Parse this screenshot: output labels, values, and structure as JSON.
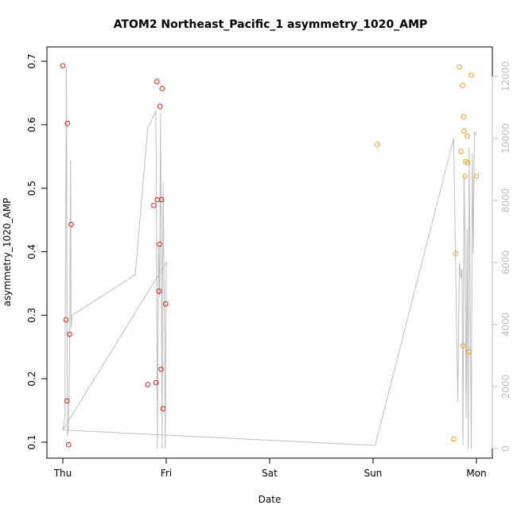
{
  "chart_data": {
    "type": "scatter",
    "title": "ATOM2 Northeast_Pacific_1 asymmetry_1020_AMP",
    "xlabel": "Date",
    "ylabel": "asymmetry_1020_AMP",
    "x_ticks": [
      "Thu",
      "Fri",
      "Sat",
      "Sun",
      "Mon"
    ],
    "xlim": [
      0,
      4.05
    ],
    "ylim": [
      0.09,
      0.72
    ],
    "y_ticks": [
      0.1,
      0.2,
      0.3,
      0.4,
      0.5,
      0.6,
      0.7
    ],
    "y2_ticks": [
      0,
      2000,
      4000,
      6000,
      8000,
      10000,
      12000
    ],
    "y2lim": [
      -300,
      12800
    ],
    "grid": false,
    "series": [
      {
        "color": "#e41a1c",
        "points": [
          {
            "x": 0.0,
            "y": 0.693
          },
          {
            "x": 0.03,
            "y": 0.293
          },
          {
            "x": 0.04,
            "y": 0.165
          },
          {
            "x": 0.045,
            "y": 0.602
          },
          {
            "x": 0.055,
            "y": 0.096
          },
          {
            "x": 0.065,
            "y": 0.27
          },
          {
            "x": 0.08,
            "y": 0.443
          },
          {
            "x": 0.82,
            "y": 0.191
          },
          {
            "x": 0.88,
            "y": 0.473
          },
          {
            "x": 0.9,
            "y": 0.194
          },
          {
            "x": 0.91,
            "y": 0.668
          },
          {
            "x": 0.912,
            "y": 0.482
          },
          {
            "x": 0.93,
            "y": 0.338
          },
          {
            "x": 0.935,
            "y": 0.412
          },
          {
            "x": 0.94,
            "y": 0.629
          },
          {
            "x": 0.95,
            "y": 0.215
          },
          {
            "x": 0.955,
            "y": 0.482
          },
          {
            "x": 0.96,
            "y": 0.657
          },
          {
            "x": 0.97,
            "y": 0.153
          },
          {
            "x": 0.995,
            "y": 0.318
          }
        ]
      },
      {
        "color": "#ff9e1b",
        "points": [
          {
            "x": 3.04,
            "y": 0.569
          },
          {
            "x": 3.78,
            "y": 0.105
          },
          {
            "x": 3.8,
            "y": 0.397
          },
          {
            "x": 3.835,
            "y": 0.691
          },
          {
            "x": 3.85,
            "y": 0.558
          },
          {
            "x": 3.865,
            "y": 0.662
          },
          {
            "x": 3.87,
            "y": 0.252
          },
          {
            "x": 3.875,
            "y": 0.613
          },
          {
            "x": 3.88,
            "y": 0.59
          },
          {
            "x": 3.89,
            "y": 0.519
          },
          {
            "x": 3.895,
            "y": 0.542
          },
          {
            "x": 3.91,
            "y": 0.582
          },
          {
            "x": 3.915,
            "y": 0.54
          },
          {
            "x": 3.925,
            "y": 0.243
          },
          {
            "x": 3.95,
            "y": 0.678
          },
          {
            "x": 4.0,
            "y": 0.519
          }
        ]
      }
    ],
    "line": {
      "color": "#bdbdbd",
      "axis": "right",
      "x": [
        0.0,
        0.02,
        0.035,
        0.045,
        0.055,
        0.065,
        0.075,
        0.08,
        0.09,
        0.7,
        0.82,
        0.9,
        0.915,
        0.925,
        0.935,
        0.945,
        0.955,
        0.96,
        0.965,
        0.97,
        0.98,
        0.99,
        1.0,
        0.0,
        3.02,
        3.78,
        3.8,
        3.82,
        3.835,
        3.85,
        3.86,
        3.87,
        3.88,
        3.89,
        3.9,
        3.91,
        3.92,
        3.93,
        3.94,
        3.95,
        3.96,
        3.97,
        3.98,
        3.99,
        4.0
      ],
      "y": [
        600,
        1000,
        12300,
        400,
        700,
        3000,
        9300,
        3900,
        4300,
        5600,
        10300,
        10900,
        0,
        6500,
        4900,
        10800,
        4400,
        0,
        5500,
        8600,
        5100,
        0,
        6000,
        600,
        100,
        10000,
        5600,
        1500,
        6000,
        5500,
        5800,
        100,
        8800,
        6500,
        1000,
        7100,
        0,
        9700,
        4000,
        0,
        9500,
        6300,
        10200,
        10200,
        10100
      ]
    }
  }
}
